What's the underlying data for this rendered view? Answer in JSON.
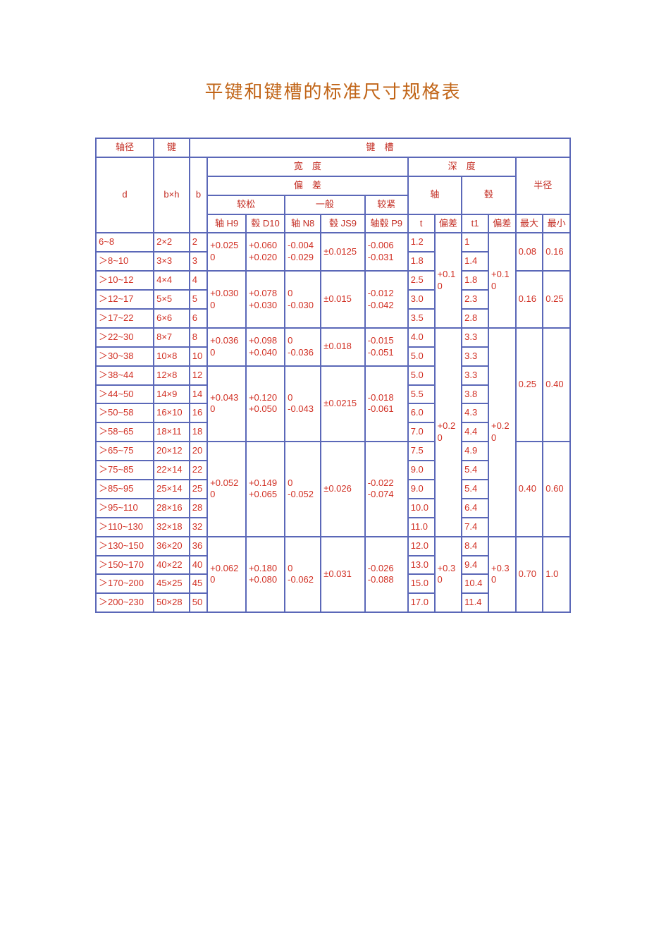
{
  "colors": {
    "title": "#c16518",
    "cell_text": "#d13024",
    "header_text": "#c32c22",
    "border": "#5b68b8",
    "background": "#ffffff"
  },
  "title": "平键和键槽的标准尺寸规格表",
  "headers": {
    "shaft_dia": "轴径",
    "key": "键",
    "keyway": "键　槽",
    "d": "d",
    "bxh": "b×h",
    "width": "宽　度",
    "depth": "深　度",
    "radius": "半径",
    "b": "b",
    "deviation": "偏　差",
    "shaft": "轴",
    "hub": "毂",
    "loose": "较松",
    "normal": "一般",
    "tight": "较紧",
    "shaft_H9": "轴 H9",
    "hub_D10": "毂 D10",
    "shaft_N8": "轴 N8",
    "hub_JS9": "毂 JS9",
    "shafthub_P9": "轴毂 P9",
    "t": "t",
    "dev_col": "偏差",
    "t1": "t1",
    "max": "最大",
    "min": "最小"
  },
  "rows": [
    {
      "d": "6~8",
      "bxh": "2×2",
      "b": "2"
    },
    {
      "d": "＞8~10",
      "bxh": "3×3",
      "b": "3"
    },
    {
      "d": "＞10~12",
      "bxh": "4×4",
      "b": "4"
    },
    {
      "d": "＞12~17",
      "bxh": "5×5",
      "b": "5"
    },
    {
      "d": "＞17~22",
      "bxh": "6×6",
      "b": "6"
    },
    {
      "d": "＞22~30",
      "bxh": "8×7",
      "b": "8"
    },
    {
      "d": "＞30~38",
      "bxh": "10×8",
      "b": "10"
    },
    {
      "d": "＞38~44",
      "bxh": "12×8",
      "b": "12"
    },
    {
      "d": "＞44~50",
      "bxh": "14×9",
      "b": "14"
    },
    {
      "d": "＞50~58",
      "bxh": "16×10",
      "b": "16"
    },
    {
      "d": "＞58~65",
      "bxh": "18×11",
      "b": "18"
    },
    {
      "d": "＞65~75",
      "bxh": "20×12",
      "b": "20"
    },
    {
      "d": "＞75~85",
      "bxh": "22×14",
      "b": "22"
    },
    {
      "d": "＞85~95",
      "bxh": "25×14",
      "b": "25"
    },
    {
      "d": "＞95~110",
      "bxh": "28×16",
      "b": "28"
    },
    {
      "d": "＞110~130",
      "bxh": "32×18",
      "b": "32"
    },
    {
      "d": "＞130~150",
      "bxh": "36×20",
      "b": "36"
    },
    {
      "d": "＞150~170",
      "bxh": "40×22",
      "b": "40"
    },
    {
      "d": "＞170~200",
      "bxh": "45×25",
      "b": "45"
    },
    {
      "d": "＞200~230",
      "bxh": "50×28",
      "b": "50"
    }
  ],
  "groups": {
    "H9_D10": [
      {
        "h9": "+0.025 0",
        "d10": "+0.060 +0.020",
        "span": 2
      },
      {
        "h9": "+0.030 0",
        "d10": "+0.078 +0.030",
        "span": 3
      },
      {
        "h9": "+0.036 0",
        "d10": "+0.098 +0.040",
        "span": 2
      },
      {
        "h9": "+0.043 0",
        "d10": "+0.120 +0.050",
        "span": 4
      },
      {
        "h9": "+0.052 0",
        "d10": "+0.149 +0.065",
        "span": 5
      },
      {
        "h9": "+0.062 0",
        "d10": "+0.180 +0.080",
        "span": 4
      }
    ],
    "N8": [
      {
        "n8": "-0.004 -0.029",
        "span": 2
      },
      {
        "n8": "0 -0.030",
        "span": 3
      },
      {
        "n8": "0 -0.036",
        "span": 2
      },
      {
        "n8": "0 -0.043",
        "span": 4
      },
      {
        "n8": "0 -0.052",
        "span": 5
      },
      {
        "n8": "0 -0.062",
        "span": 4
      }
    ],
    "JS9": [
      {
        "js9": "±0.0125",
        "span": 2
      },
      {
        "js9": "±0.015",
        "span": 3
      },
      {
        "js9": "±0.018",
        "span": 2
      },
      {
        "js9": "±0.0215",
        "span": 4
      },
      {
        "js9": "±0.026",
        "span": 5
      },
      {
        "js9": "±0.031",
        "span": 4
      }
    ],
    "P9": [
      {
        "p9": "-0.006 -0.031",
        "span": 2
      },
      {
        "p9": "-0.012 -0.042",
        "span": 3
      },
      {
        "p9": "-0.015 -0.051",
        "span": 2
      },
      {
        "p9": "-0.018 -0.061",
        "span": 4
      },
      {
        "p9": "-0.022 -0.074",
        "span": 5
      },
      {
        "p9": "-0.026 -0.088",
        "span": 4
      }
    ],
    "t": [
      "1.2",
      "1.8",
      "2.5",
      "3.0",
      "3.5",
      "4.0",
      "5.0",
      "5.0",
      "5.5",
      "6.0",
      "7.0",
      "7.5",
      "9.0",
      "9.0",
      "10.0",
      "11.0",
      "12.0",
      "13.0",
      "15.0",
      "17.0"
    ],
    "t1": [
      "1",
      "1.4",
      "1.8",
      "2.3",
      "2.8",
      "3.3",
      "3.3",
      "3.3",
      "3.8",
      "4.3",
      "4.4",
      "4.9",
      "5.4",
      "5.4",
      "6.4",
      "7.4",
      "8.4",
      "9.4",
      "10.4",
      "11.4"
    ],
    "t_dev": [
      {
        "val": "+0.1 0",
        "span": 5
      },
      {
        "val": "+0.2 0",
        "span": 11
      },
      {
        "val": "+0.3 0",
        "span": 4
      }
    ],
    "t1_dev": [
      {
        "val": "+0.1 0",
        "span": 5
      },
      {
        "val": "+0.2 0",
        "span": 11
      },
      {
        "val": "+0.3 0",
        "span": 4
      }
    ],
    "radius": [
      {
        "max": "0.08",
        "min": "0.16",
        "span": 2
      },
      {
        "max": "0.16",
        "min": "0.25",
        "span": 3
      },
      {
        "max": "0.25",
        "min": "0.40",
        "span": 6
      },
      {
        "max": "0.40",
        "min": "0.60",
        "span": 5
      },
      {
        "max": "0.70",
        "min": "1.0",
        "span": 4
      }
    ]
  }
}
